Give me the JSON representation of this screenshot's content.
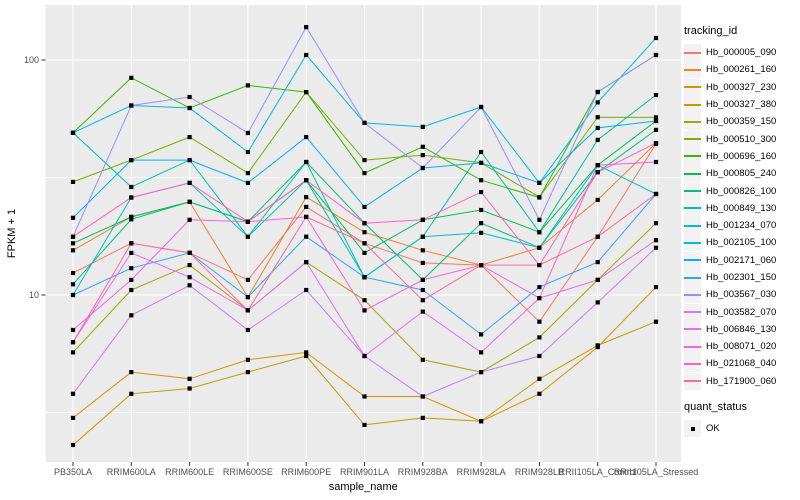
{
  "figure": {
    "background": "#FFFFFF",
    "panel_background": "#EBEBEB",
    "grid_color": "#FFFFFF",
    "tick_color": "#333333",
    "tick_text_color": "#4D4D4D",
    "point_color": "#000000",
    "legend_key_fill": "#F2F2F2"
  },
  "chart_data": {
    "type": "line",
    "title": "",
    "xlabel": "sample_name",
    "ylabel": "FPKM + 1",
    "y_scale": "log10",
    "y_ticks": [
      100,
      10
    ],
    "y_tick_labels": [
      "100",
      "10"
    ],
    "y_range_approx": [
      1.9,
      170
    ],
    "grid": true,
    "legend_position": "right",
    "legend_title": "tracking_id",
    "categories": [
      "PB350LA",
      "RRIM600LA",
      "RRIM600LE",
      "RRIM600SE",
      "RRIM600PE",
      "RRIM901LA",
      "RRIM928BA",
      "RRIM928LA",
      "RRIM928LB",
      "RRII105LA_Control",
      "RRII105LA_Stressed"
    ],
    "series": [
      {
        "name": "Hb_000005_090",
        "color": "#F8766D",
        "values": [
          12.4,
          16.6,
          15.1,
          11.6,
          23.7,
          16.6,
          13.7,
          13.4,
          7.7,
          17.7,
          44.0
        ]
      },
      {
        "name": "Hb_000261_160",
        "color": "#EA8331",
        "values": [
          15.5,
          21.5,
          24.9,
          9.8,
          26.1,
          18.5,
          15.5,
          13.4,
          15.9,
          25.4,
          44.3
        ]
      },
      {
        "name": "Hb_000327_230",
        "color": "#D89000",
        "values": [
          3.0,
          4.7,
          4.4,
          5.3,
          5.7,
          3.7,
          3.7,
          2.9,
          3.8,
          6.0,
          10.8
        ]
      },
      {
        "name": "Hb_000327_380",
        "color": "#C09B00",
        "values": [
          2.3,
          3.8,
          4.0,
          4.7,
          5.5,
          2.8,
          3.0,
          2.9,
          4.4,
          6.1,
          7.7
        ]
      },
      {
        "name": "Hb_000359_150",
        "color": "#A3A500",
        "values": [
          5.7,
          10.5,
          13.4,
          8.6,
          13.8,
          9.5,
          5.3,
          4.7,
          6.6,
          11.6,
          20.2
        ]
      },
      {
        "name": "Hb_000510_300",
        "color": "#7CAE00",
        "values": [
          30.3,
          37.5,
          47.0,
          33.0,
          73.0,
          37.5,
          39.4,
          36.5,
          26.1,
          57.1,
          57.0
        ]
      },
      {
        "name": "Hb_000696_160",
        "color": "#39B600",
        "values": [
          49.0,
          84.0,
          62.5,
          78.0,
          73.0,
          33.0,
          42.7,
          30.8,
          26.0,
          73.1,
          105.0
        ]
      },
      {
        "name": "Hb_000805_240",
        "color": "#00BB4E",
        "values": [
          16.6,
          21.5,
          24.9,
          20.5,
          30.8,
          15.1,
          20.9,
          23.0,
          18.5,
          35.7,
          55.0
        ]
      },
      {
        "name": "Hb_000826_100",
        "color": "#00BF7D",
        "values": [
          11.1,
          21.0,
          24.9,
          20.5,
          36.8,
          20.2,
          11.6,
          20.2,
          15.9,
          33.3,
          50.4
        ]
      },
      {
        "name": "Hb_000849_130",
        "color": "#00C1A3",
        "values": [
          49.0,
          28.8,
          37.5,
          17.7,
          36.8,
          11.9,
          17.7,
          40.6,
          18.5,
          45.7,
          71.0
        ]
      },
      {
        "name": "Hb_001234_070",
        "color": "#00BFC4",
        "values": [
          10.0,
          26.0,
          30.0,
          17.7,
          30.8,
          11.9,
          17.7,
          18.4,
          15.9,
          35.7,
          26.9
        ]
      },
      {
        "name": "Hb_002105_100",
        "color": "#00BAE0",
        "values": [
          49.0,
          64.0,
          62.5,
          40.6,
          105.0,
          54.0,
          51.9,
          63.1,
          30.0,
          66.0,
          124.0
        ]
      },
      {
        "name": "Hb_002171_060",
        "color": "#00B0F6",
        "values": [
          21.3,
          37.5,
          37.5,
          30.0,
          47.0,
          23.7,
          34.7,
          36.5,
          30.0,
          51.4,
          55.0
        ]
      },
      {
        "name": "Hb_002301_150",
        "color": "#35A2FF",
        "values": [
          10.0,
          13.0,
          15.1,
          9.8,
          17.7,
          11.9,
          10.5,
          6.8,
          10.8,
          13.8,
          26.9
        ]
      },
      {
        "name": "Hb_003567_030",
        "color": "#9590FF",
        "values": [
          17.7,
          64.0,
          69.6,
          48.9,
          138.0,
          54.0,
          34.7,
          63.1,
          20.9,
          73.1,
          105.0
        ]
      },
      {
        "name": "Hb_003582_070",
        "color": "#C77CFF",
        "values": [
          3.8,
          8.2,
          11.0,
          7.1,
          10.5,
          5.5,
          3.7,
          4.7,
          5.5,
          9.3,
          15.9
        ]
      },
      {
        "name": "Hb_006846_130",
        "color": "#E76BF3",
        "values": [
          6.3,
          15.1,
          11.9,
          8.6,
          13.8,
          5.5,
          8.5,
          5.7,
          9.7,
          11.6,
          17.1
        ]
      },
      {
        "name": "Hb_008071_020",
        "color": "#FA62DB",
        "values": [
          7.1,
          11.6,
          20.9,
          20.5,
          21.5,
          8.6,
          11.6,
          13.4,
          9.7,
          35.7,
          36.8
        ]
      },
      {
        "name": "Hb_021068_040",
        "color": "#FF62BC",
        "values": [
          17.7,
          26.0,
          30.0,
          20.5,
          30.8,
          20.2,
          20.9,
          27.4,
          13.4,
          33.3,
          44.3
        ]
      },
      {
        "name": "Hb_171900_060",
        "color": "#FF6A98",
        "values": [
          6.3,
          16.6,
          15.1,
          8.6,
          21.5,
          16.6,
          9.5,
          13.4,
          13.4,
          17.7,
          26.9
        ]
      }
    ],
    "quant_legend": {
      "title": "quant_status",
      "label": "OK",
      "marker": "black-square"
    }
  }
}
